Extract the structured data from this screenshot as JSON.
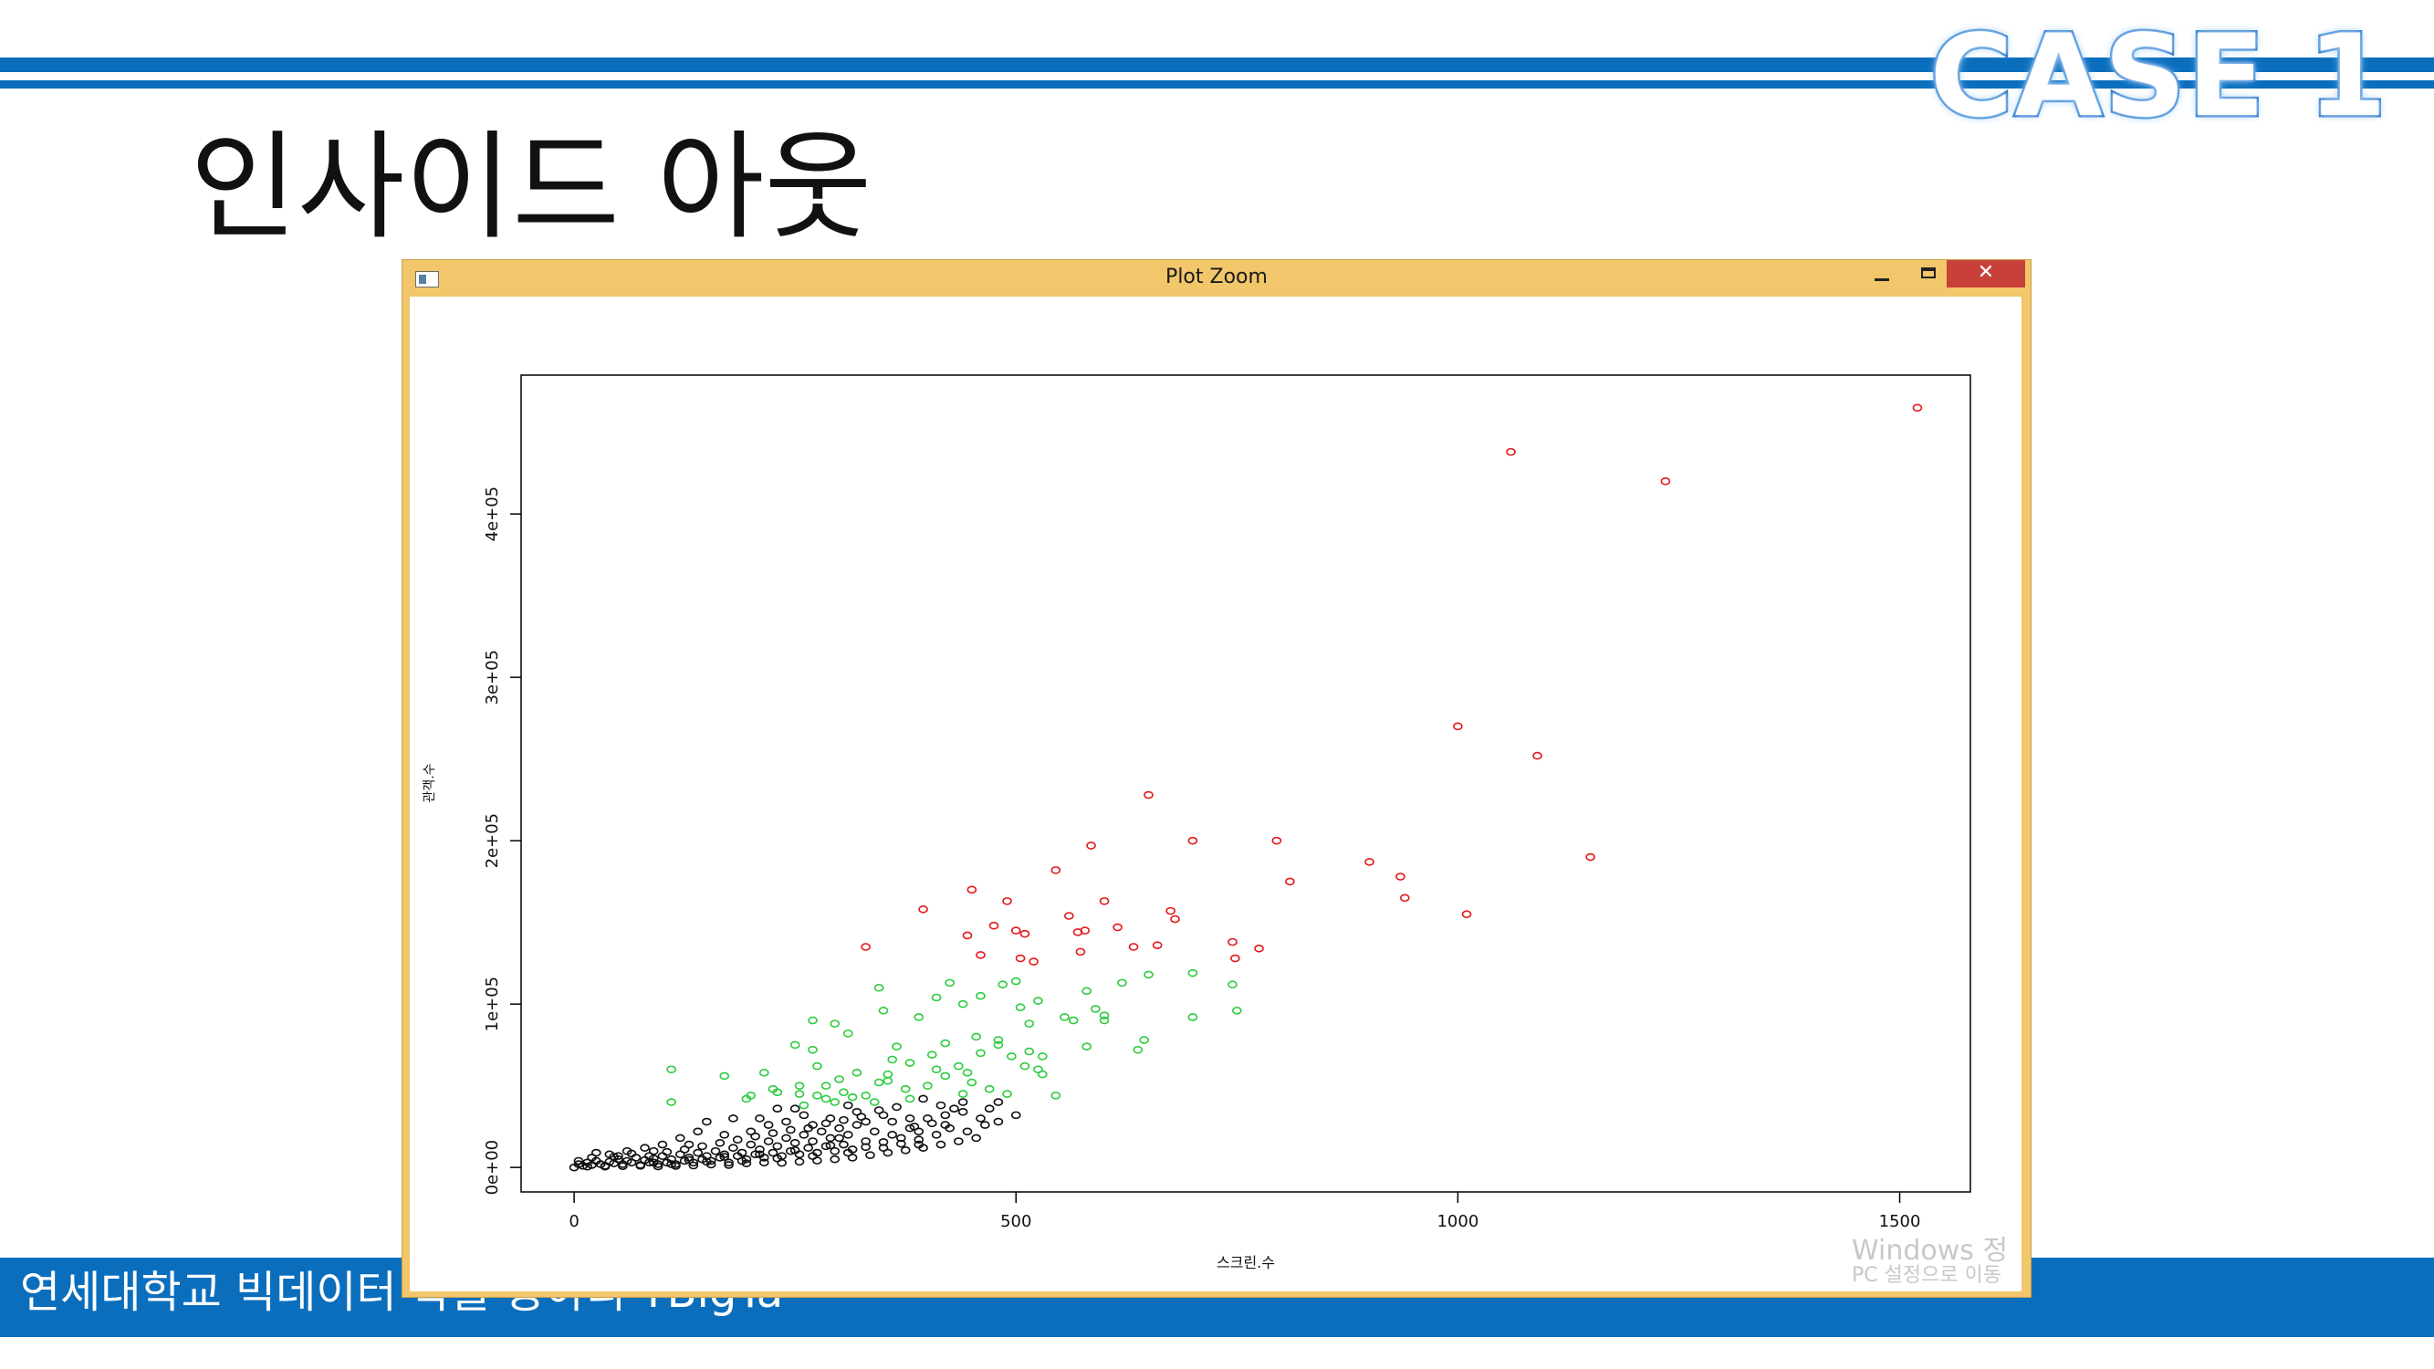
{
  "slide": {
    "title": "인사이드 아웃",
    "case_label": "CASE 1",
    "footer": "연세대학교 빅데이터 학술 동아리 YBigTa",
    "header_color": "#0a6ebd"
  },
  "window": {
    "title": "Plot Zoom",
    "close_glyph": "✕",
    "watermark_line1": "Windows 정",
    "watermark_line2": "PC 설정으로 이동"
  },
  "chart_data": {
    "type": "scatter",
    "xlabel": "스크린.수",
    "ylabel": "관객.수",
    "xlim": [
      -60,
      1580
    ],
    "ylim": [
      -15000,
      485000
    ],
    "x_ticks": [
      0,
      500,
      1000,
      1500
    ],
    "x_tick_labels": [
      "0",
      "500",
      "1000",
      "1500"
    ],
    "y_ticks": [
      0,
      100000,
      200000,
      300000,
      400000
    ],
    "y_tick_labels": [
      "0e+00",
      "1e+05",
      "2e+05",
      "3e+05",
      "4e+05"
    ],
    "grid": false,
    "marker": "open-circle",
    "series": [
      {
        "color": "#e41a1c",
        "points": [
          [
            1520,
            465000
          ],
          [
            1060,
            438000
          ],
          [
            1235,
            420000
          ],
          [
            1000,
            270000
          ],
          [
            1090,
            252000
          ],
          [
            650,
            228000
          ],
          [
            1150,
            190000
          ],
          [
            700,
            200000
          ],
          [
            795,
            200000
          ],
          [
            585,
            197000
          ],
          [
            545,
            182000
          ],
          [
            900,
            187000
          ],
          [
            935,
            178000
          ],
          [
            810,
            175000
          ],
          [
            940,
            165000
          ],
          [
            600,
            163000
          ],
          [
            450,
            170000
          ],
          [
            490,
            163000
          ],
          [
            675,
            157000
          ],
          [
            1010,
            155000
          ],
          [
            395,
            158000
          ],
          [
            560,
            154000
          ],
          [
            680,
            152000
          ],
          [
            475,
            148000
          ],
          [
            500,
            145000
          ],
          [
            570,
            144000
          ],
          [
            615,
            147000
          ],
          [
            510,
            143000
          ],
          [
            578,
            145000
          ],
          [
            445,
            142000
          ],
          [
            745,
            138000
          ],
          [
            660,
            136000
          ],
          [
            775,
            134000
          ],
          [
            633,
            135000
          ],
          [
            573,
            132000
          ],
          [
            460,
            130000
          ],
          [
            505,
            128000
          ],
          [
            748,
            128000
          ],
          [
            330,
            135000
          ],
          [
            520,
            126000
          ]
        ]
      },
      {
        "color": "#2ecc40",
        "points": [
          [
            650,
            118000
          ],
          [
            700,
            119000
          ],
          [
            345,
            110000
          ],
          [
            425,
            113000
          ],
          [
            745,
            112000
          ],
          [
            500,
            114000
          ],
          [
            485,
            112000
          ],
          [
            620,
            113000
          ],
          [
            580,
            108000
          ],
          [
            410,
            104000
          ],
          [
            460,
            105000
          ],
          [
            525,
            102000
          ],
          [
            440,
            100000
          ],
          [
            505,
            98000
          ],
          [
            750,
            96000
          ],
          [
            590,
            97000
          ],
          [
            350,
            96000
          ],
          [
            600,
            93000
          ],
          [
            295,
            88000
          ],
          [
            270,
            90000
          ],
          [
            390,
            92000
          ],
          [
            600,
            90000
          ],
          [
            555,
            92000
          ],
          [
            565,
            90000
          ],
          [
            515,
            88000
          ],
          [
            310,
            82000
          ],
          [
            250,
            75000
          ],
          [
            455,
            80000
          ],
          [
            480,
            78000
          ],
          [
            645,
            78000
          ],
          [
            700,
            92000
          ],
          [
            480,
            75000
          ],
          [
            420,
            76000
          ],
          [
            365,
            74000
          ],
          [
            580,
            74000
          ],
          [
            638,
            72000
          ],
          [
            515,
            71000
          ],
          [
            270,
            72000
          ],
          [
            460,
            70000
          ],
          [
            405,
            69000
          ],
          [
            530,
            68000
          ],
          [
            495,
            68000
          ],
          [
            360,
            66000
          ],
          [
            380,
            64000
          ],
          [
            435,
            62000
          ],
          [
            275,
            62000
          ],
          [
            215,
            58000
          ],
          [
            170,
            56000
          ],
          [
            110,
            60000
          ],
          [
            320,
            58000
          ],
          [
            300,
            54000
          ],
          [
            355,
            53000
          ],
          [
            445,
            58000
          ],
          [
            510,
            62000
          ],
          [
            525,
            60000
          ],
          [
            255,
            50000
          ],
          [
            345,
            52000
          ],
          [
            400,
            50000
          ],
          [
            420,
            56000
          ],
          [
            410,
            60000
          ],
          [
            470,
            48000
          ],
          [
            545,
            44000
          ],
          [
            490,
            45000
          ],
          [
            225,
            48000
          ],
          [
            255,
            45000
          ],
          [
            275,
            44000
          ],
          [
            285,
            42000
          ],
          [
            230,
            46000
          ],
          [
            200,
            44000
          ],
          [
            330,
            44000
          ],
          [
            305,
            46000
          ],
          [
            295,
            40000
          ],
          [
            260,
            38000
          ],
          [
            315,
            43000
          ],
          [
            340,
            40000
          ],
          [
            375,
            48000
          ],
          [
            380,
            42000
          ],
          [
            110,
            40000
          ],
          [
            195,
            42000
          ],
          [
            440,
            45000
          ],
          [
            285,
            50000
          ],
          [
            355,
            57000
          ],
          [
            450,
            52000
          ],
          [
            530,
            57000
          ]
        ]
      },
      {
        "color": "#111111",
        "points": [
          [
            0,
            0
          ],
          [
            5,
            2000
          ],
          [
            10,
            1000
          ],
          [
            15,
            3000
          ],
          [
            20,
            1500
          ],
          [
            25,
            4000
          ],
          [
            30,
            2000
          ],
          [
            35,
            1000
          ],
          [
            40,
            3500
          ],
          [
            45,
            2500
          ],
          [
            50,
            5000
          ],
          [
            55,
            2000
          ],
          [
            60,
            4000
          ],
          [
            65,
            3000
          ],
          [
            70,
            6000
          ],
          [
            75,
            1000
          ],
          [
            80,
            4500
          ],
          [
            85,
            3000
          ],
          [
            90,
            5500
          ],
          [
            95,
            2000
          ],
          [
            100,
            7000
          ],
          [
            105,
            3000
          ],
          [
            110,
            5000
          ],
          [
            115,
            2000
          ],
          [
            120,
            8000
          ],
          [
            125,
            4000
          ],
          [
            130,
            6000
          ],
          [
            135,
            3000
          ],
          [
            140,
            9000
          ],
          [
            145,
            5000
          ],
          [
            150,
            7000
          ],
          [
            155,
            4000
          ],
          [
            160,
            10000
          ],
          [
            165,
            6000
          ],
          [
            170,
            8000
          ],
          [
            175,
            3000
          ],
          [
            180,
            12000
          ],
          [
            185,
            7000
          ],
          [
            190,
            9000
          ],
          [
            195,
            5000
          ],
          [
            200,
            14000
          ],
          [
            205,
            8000
          ],
          [
            210,
            11000
          ],
          [
            215,
            6000
          ],
          [
            220,
            16000
          ],
          [
            225,
            9000
          ],
          [
            230,
            13000
          ],
          [
            235,
            7000
          ],
          [
            240,
            18000
          ],
          [
            245,
            10000
          ],
          [
            250,
            15000
          ],
          [
            255,
            8000
          ],
          [
            260,
            20000
          ],
          [
            265,
            12000
          ],
          [
            270,
            16000
          ],
          [
            275,
            9000
          ],
          [
            280,
            22000
          ],
          [
            285,
            13000
          ],
          [
            290,
            18000
          ],
          [
            295,
            10000
          ],
          [
            300,
            24000
          ],
          [
            305,
            14000
          ],
          [
            310,
            20000
          ],
          [
            315,
            11000
          ],
          [
            320,
            26000
          ],
          [
            330,
            16000
          ],
          [
            340,
            22000
          ],
          [
            350,
            12000
          ],
          [
            360,
            28000
          ],
          [
            370,
            18000
          ],
          [
            380,
            24000
          ],
          [
            390,
            14000
          ],
          [
            400,
            30000
          ],
          [
            410,
            20000
          ],
          [
            420,
            26000
          ],
          [
            430,
            36000
          ],
          [
            440,
            34000
          ],
          [
            460,
            30000
          ],
          [
            480,
            40000
          ],
          [
            230,
            36000
          ],
          [
            260,
            32000
          ],
          [
            290,
            30000
          ],
          [
            320,
            34000
          ],
          [
            180,
            30000
          ],
          [
            150,
            28000
          ],
          [
            140,
            22000
          ],
          [
            120,
            18000
          ],
          [
            100,
            14000
          ],
          [
            80,
            12000
          ],
          [
            60,
            10000
          ],
          [
            40,
            8000
          ],
          [
            20,
            6000
          ],
          [
            5,
            4000
          ],
          [
            15,
            500
          ],
          [
            35,
            500
          ],
          [
            55,
            800
          ],
          [
            75,
            1500
          ],
          [
            95,
            600
          ],
          [
            115,
            900
          ],
          [
            135,
            1200
          ],
          [
            155,
            1800
          ],
          [
            175,
            1500
          ],
          [
            195,
            2500
          ],
          [
            215,
            3000
          ],
          [
            235,
            2800
          ],
          [
            255,
            3500
          ],
          [
            275,
            4200
          ],
          [
            295,
            5000
          ],
          [
            315,
            6000
          ],
          [
            335,
            7500
          ],
          [
            355,
            9000
          ],
          [
            375,
            10500
          ],
          [
            395,
            12000
          ],
          [
            415,
            14000
          ],
          [
            435,
            16000
          ],
          [
            455,
            18000
          ],
          [
            200,
            22000
          ],
          [
            220,
            26000
          ],
          [
            240,
            28000
          ],
          [
            270,
            26000
          ],
          [
            300,
            18000
          ],
          [
            330,
            28000
          ],
          [
            360,
            20000
          ],
          [
            390,
            22000
          ],
          [
            420,
            32000
          ],
          [
            350,
            32000
          ],
          [
            310,
            38000
          ],
          [
            250,
            36000
          ],
          [
            210,
            30000
          ],
          [
            170,
            20000
          ],
          [
            130,
            14000
          ],
          [
            90,
            10000
          ],
          [
            50,
            7000
          ],
          [
            25,
            9000
          ],
          [
            45,
            6500
          ],
          [
            65,
            8500
          ],
          [
            85,
            7000
          ],
          [
            105,
            9500
          ],
          [
            125,
            11000
          ],
          [
            145,
            13000
          ],
          [
            165,
            15000
          ],
          [
            185,
            17000
          ],
          [
            205,
            19000
          ],
          [
            225,
            21000
          ],
          [
            245,
            23000
          ],
          [
            265,
            24000
          ],
          [
            285,
            27000
          ],
          [
            305,
            29000
          ],
          [
            325,
            31000
          ],
          [
            345,
            35000
          ],
          [
            365,
            37000
          ],
          [
            385,
            25000
          ],
          [
            405,
            27000
          ],
          [
            425,
            24000
          ],
          [
            445,
            22000
          ],
          [
            465,
            26000
          ],
          [
            480,
            28000
          ],
          [
            500,
            32000
          ],
          [
            440,
            40000
          ],
          [
            470,
            36000
          ],
          [
            395,
            42000
          ],
          [
            415,
            38000
          ],
          [
            380,
            30000
          ],
          [
            90,
            3000
          ],
          [
            110,
            2000
          ],
          [
            130,
            4500
          ],
          [
            150,
            3500
          ],
          [
            170,
            6500
          ],
          [
            190,
            4000
          ],
          [
            210,
            8000
          ],
          [
            230,
            5500
          ],
          [
            250,
            10500
          ],
          [
            270,
            7000
          ],
          [
            290,
            13500
          ],
          [
            310,
            9000
          ],
          [
            330,
            12500
          ],
          [
            350,
            15500
          ],
          [
            370,
            14500
          ],
          [
            390,
            17000
          ]
        ]
      }
    ]
  }
}
